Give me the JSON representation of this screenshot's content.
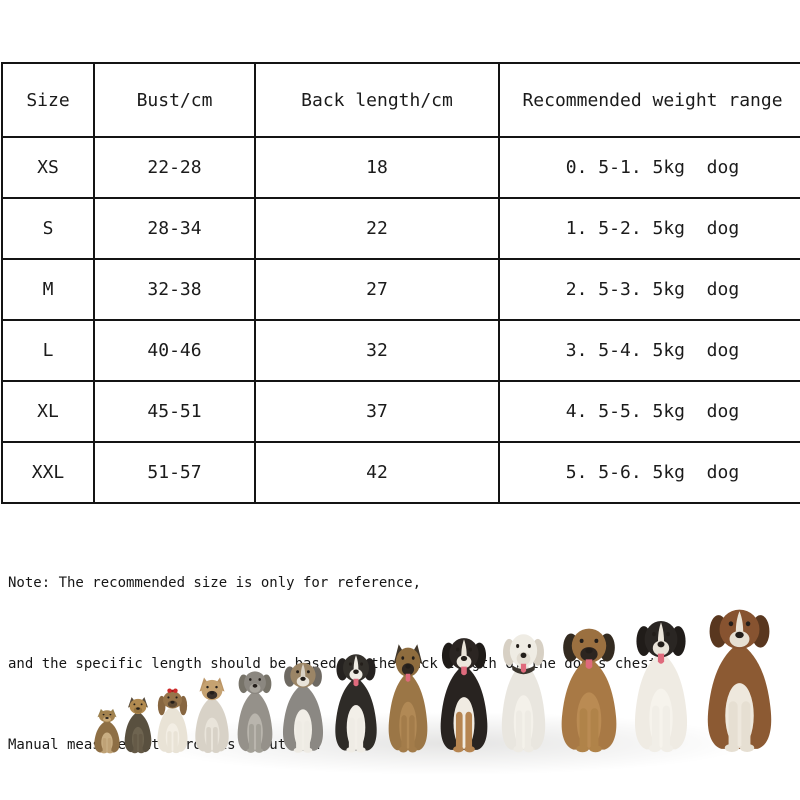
{
  "colors": {
    "background": "#ffffff",
    "table_border": "#141414",
    "text": "#1b1b1b",
    "bow_red": "#ce2a2a",
    "tongue_pink": "#df6a7c",
    "shadow": "#5a5854"
  },
  "table": {
    "headers": [
      "Size",
      "Bust/cm",
      "Back length/cm",
      "Recommended weight range"
    ],
    "rows": [
      [
        "XS",
        "22-28",
        "18",
        "0. 5-1. 5kg  dog"
      ],
      [
        "S",
        "28-34",
        "22",
        "1. 5-2. 5kg  dog"
      ],
      [
        "M",
        "32-38",
        "27",
        "2. 5-3. 5kg  dog"
      ],
      [
        "L",
        "40-46",
        "32",
        "3. 5-4. 5kg  dog"
      ],
      [
        "XL",
        "45-51",
        "37",
        "4. 5-5. 5kg  dog"
      ],
      [
        "XXL",
        "51-57",
        "42",
        "5. 5-6. 5kg  dog"
      ]
    ]
  },
  "note": {
    "line1": "Note: The recommended size is only for reference,",
    "line2": "and the specific length should be based on the back length of the dog's chest.",
    "line3": "Manual measurement error is about 2cm"
  },
  "dogs": {
    "description": "thirteen dogs seated in a row, smallest to largest",
    "items": [
      {
        "name": "chihuahua",
        "w": 38,
        "h": 46,
        "ears": "up",
        "body": "#8e6f45",
        "chest": "#c9ae83",
        "head": "#a3824f",
        "muzzle": "#caa977",
        "ear": "#97804e",
        "leg": "#bfa276"
      },
      {
        "name": "yorkshire-terrier",
        "w": 40,
        "h": 58,
        "ears": "up",
        "body": "#59503f",
        "chest": "#6e6450",
        "head": "#b18a50",
        "muzzle": "#97743f",
        "ear": "#55493a",
        "leg": "#655a47"
      },
      {
        "name": "shih-tzu",
        "w": 45,
        "h": 66,
        "ears": "long",
        "bow": true,
        "body": "#e9e3d6",
        "chest": "#f3eee4",
        "head": "#96744a",
        "muzzle": "#5f4a33",
        "ear": "#876640",
        "leg": "#e9e3d6"
      },
      {
        "name": "griffon",
        "w": 50,
        "h": 78,
        "ears": "up",
        "body": "#d8d2c7",
        "chest": "#e9e4da",
        "head": "#c5a271",
        "muzzle": "#3a312a",
        "ear": "#bb9566",
        "leg": "#d8d2c7"
      },
      {
        "name": "schnauzer",
        "w": 52,
        "h": 87,
        "ears": "floppy",
        "body": "#95918a",
        "chest": "#b9b5ad",
        "head": "#8b8780",
        "muzzle": "#a9a59d",
        "ear": "#777369",
        "leg": "#a3a097"
      },
      {
        "name": "australian-shepherd",
        "w": 60,
        "h": 96,
        "ears": "floppy",
        "blaze": "#d8d1c5",
        "body": "#8b8883",
        "chest": "#f1eee7",
        "head": "#9b8566",
        "muzzle": "#e9e4da",
        "ear": "#6e6962",
        "leg": "#eeebe4"
      },
      {
        "name": "border-collie",
        "w": 62,
        "h": 105,
        "ears": "floppy",
        "blaze": "#eeebe3",
        "tongue": true,
        "body": "#2e2b27",
        "chest": "#f2efe8",
        "head": "#33302b",
        "muzzle": "#eeebe3",
        "ear": "#252220",
        "leg": "#efece5"
      },
      {
        "name": "malinois",
        "w": 58,
        "h": 112,
        "ears": "up",
        "tongue": true,
        "body": "#9b7646",
        "chest": "#b18955",
        "head": "#8e6c3e",
        "muzzle": "#2e2620",
        "ear": "#40362a",
        "leg": "#a37c4a"
      },
      {
        "name": "swiss-mountain-dog",
        "w": 70,
        "h": 122,
        "ears": "floppy",
        "blaze": "#e9e3d8",
        "tongue": true,
        "body": "#282320",
        "chest": "#f0ebe2",
        "head": "#2b2522",
        "muzzle": "#ece7dd",
        "ear": "#1f1b18",
        "leg": "#b68551"
      },
      {
        "name": "white-boxer",
        "w": 65,
        "h": 126,
        "ears": "floppy",
        "tongue": true,
        "collar": "#3b352e",
        "body": "#e9e6df",
        "chest": "#f4f1ea",
        "head": "#efece4",
        "muzzle": "#e2dcd1",
        "ear": "#d7d0c4",
        "leg": "#eeebe4"
      },
      {
        "name": "mastiff",
        "w": 82,
        "h": 132,
        "ears": "floppy",
        "tongue": true,
        "body": "#a87945",
        "chest": "#ba8b53",
        "head": "#9b7040",
        "muzzle": "#2c2520",
        "ear": "#332a20",
        "leg": "#b08349"
      },
      {
        "name": "landseer",
        "w": 78,
        "h": 140,
        "ears": "floppy",
        "blaze": "#ebe5da",
        "tongue": true,
        "body": "#efebe3",
        "chest": "#f6f3ec",
        "head": "#2a2623",
        "muzzle": "#e8e3d8",
        "ear": "#201c19",
        "leg": "#f1eee7"
      },
      {
        "name": "st-bernard",
        "w": 95,
        "h": 152,
        "ears": "floppy",
        "blaze": "#eae3d6",
        "body": "#8c5a33",
        "chest": "#eee8dd",
        "head": "#875330",
        "muzzle": "#e6dfd2",
        "ear": "#59371f",
        "leg": "#e6dfd2"
      }
    ]
  }
}
